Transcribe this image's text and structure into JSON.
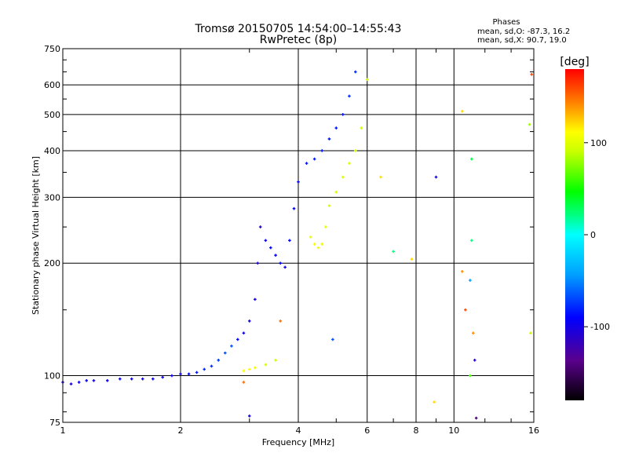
{
  "chart_data": {
    "type": "scatter",
    "title": "Tromsø 20150705 14:54:00–14:55:43",
    "subtitle": "RwPretec (8p)",
    "xlabel": "Frequency [MHz]",
    "ylabel": "Stationary phase Virtual Height [km]",
    "x_scale": "log",
    "y_scale": "log",
    "xlim": [
      1,
      16
    ],
    "ylim": [
      75,
      750
    ],
    "x_ticks": [
      1,
      2,
      4,
      6,
      8,
      10,
      16
    ],
    "x_tick_labels": [
      "1",
      "2",
      "4",
      "6",
      "8",
      "10",
      "16"
    ],
    "y_ticks": [
      75,
      100,
      200,
      300,
      400,
      500,
      600,
      750
    ],
    "y_tick_labels": [
      "75",
      "100",
      "200",
      "300",
      "400",
      "500",
      "600",
      "750"
    ],
    "grid": true,
    "phases_box": {
      "title": "Phases",
      "line1": "mean, sd,O:  -87.3, 16.2",
      "line2": "mean, sd,X:  90.7, 19.0"
    },
    "colorbar": {
      "label": "[deg]",
      "range": [
        -180,
        180
      ],
      "ticks": [
        100,
        0,
        -100
      ],
      "tick_labels": [
        "100",
        "0",
        "-100"
      ]
    },
    "series": [
      {
        "trace": "O",
        "x": [
          1.0,
          1.05,
          1.1,
          1.15,
          1.2,
          1.3,
          1.4,
          1.5,
          1.6,
          1.7,
          1.8,
          1.9,
          2.0,
          2.1,
          2.2,
          2.3,
          2.4,
          2.5,
          2.6,
          2.7,
          2.8,
          2.9,
          3.0,
          3.1,
          3.15,
          3.2,
          3.3,
          3.4,
          3.5,
          3.6,
          3.7,
          3.8,
          3.9,
          4.0,
          4.2,
          4.4,
          4.6,
          4.8,
          5.0,
          5.2,
          5.4,
          5.6
        ],
        "y": [
          96,
          95,
          96,
          97,
          97,
          97,
          98,
          98,
          98,
          98,
          99,
          100,
          101,
          101,
          102,
          104,
          106,
          110,
          115,
          120,
          125,
          130,
          140,
          160,
          200,
          250,
          230,
          220,
          210,
          200,
          195,
          230,
          280,
          330,
          370,
          380,
          400,
          430,
          460,
          500,
          560,
          650
        ],
        "phase": [
          -110,
          -110,
          -105,
          -105,
          -105,
          -105,
          -105,
          -105,
          -105,
          -105,
          -105,
          -105,
          -105,
          -100,
          -95,
          -90,
          -90,
          -85,
          -80,
          -80,
          -100,
          -105,
          -110,
          -110,
          -115,
          -115,
          -105,
          -100,
          -100,
          -100,
          -105,
          -100,
          -100,
          -100,
          -95,
          -95,
          -95,
          -95,
          -95,
          -95,
          -90,
          -90
        ]
      },
      {
        "trace": "X",
        "x": [
          2.9,
          3.0,
          3.1,
          3.3,
          3.5,
          4.3,
          4.4,
          4.5,
          4.6,
          4.7,
          4.8,
          5.0,
          5.2,
          5.4,
          5.6,
          5.8,
          6.0
        ],
        "y": [
          103,
          104,
          105,
          107,
          110,
          235,
          225,
          220,
          225,
          250,
          285,
          310,
          340,
          370,
          400,
          460,
          620
        ],
        "phase": [
          110,
          110,
          105,
          95,
          90,
          100,
          105,
          105,
          100,
          100,
          95,
          95,
          95,
          95,
          90,
          90,
          90
        ]
      },
      {
        "trace": "scattered",
        "x": [
          2.9,
          3.0,
          3.6,
          4.9,
          6.5,
          7.0,
          7.8,
          8.9,
          9.0,
          10.5,
          10.5,
          10.7,
          11.0,
          11.0,
          11.1,
          11.1,
          11.2,
          11.3,
          11.4,
          15.6,
          15.7,
          15.8
        ],
        "y": [
          96,
          78,
          140,
          125,
          340,
          215,
          205,
          85,
          340,
          190,
          510,
          150,
          100,
          180,
          380,
          230,
          130,
          110,
          77,
          470,
          130,
          640
        ],
        "phase": [
          150,
          -110,
          150,
          -80,
          120,
          20,
          120,
          120,
          -110,
          140,
          120,
          160,
          60,
          -60,
          30,
          20,
          140,
          -120,
          -150,
          80,
          90,
          160
        ]
      }
    ]
  }
}
